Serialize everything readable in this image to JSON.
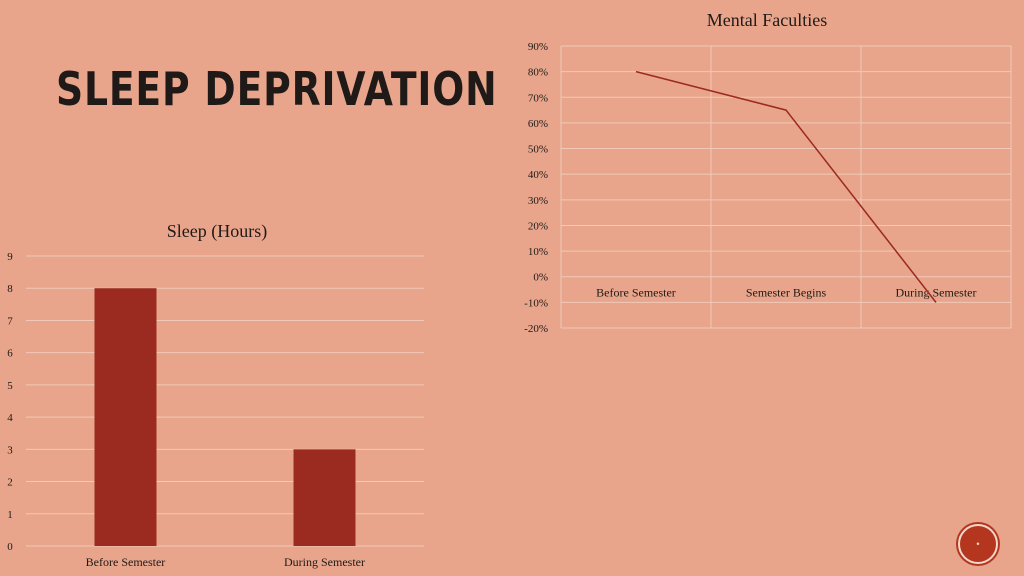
{
  "slide": {
    "title": "SLEEP DEPRIVATION"
  },
  "colors": {
    "background": "#e8a58b",
    "bar": "#9b2b20",
    "line": "#9b2b20",
    "grid": "#f0c9b8",
    "text": "#1f1a18"
  },
  "chart_data": [
    {
      "type": "bar",
      "title": "Sleep (Hours)",
      "categories": [
        "Before Semester",
        "During Semester"
      ],
      "values": [
        8,
        3
      ],
      "ylim": [
        0,
        9
      ],
      "yticks": [
        "0",
        "1",
        "2",
        "3",
        "4",
        "5",
        "6",
        "7",
        "8",
        "9"
      ],
      "xlabel": "",
      "ylabel": "",
      "grid": true
    },
    {
      "type": "line",
      "title": "Mental Faculties",
      "categories": [
        "Before Semester",
        "Semester Begins",
        "During Semester"
      ],
      "values": [
        80,
        65,
        -10
      ],
      "ylim": [
        -20,
        90
      ],
      "yticks": [
        "-20%",
        "-10%",
        "0%",
        "10%",
        "20%",
        "30%",
        "40%",
        "50%",
        "60%",
        "70%",
        "80%",
        "90%"
      ],
      "xlabel": "",
      "ylabel": "",
      "grid": true
    }
  ]
}
